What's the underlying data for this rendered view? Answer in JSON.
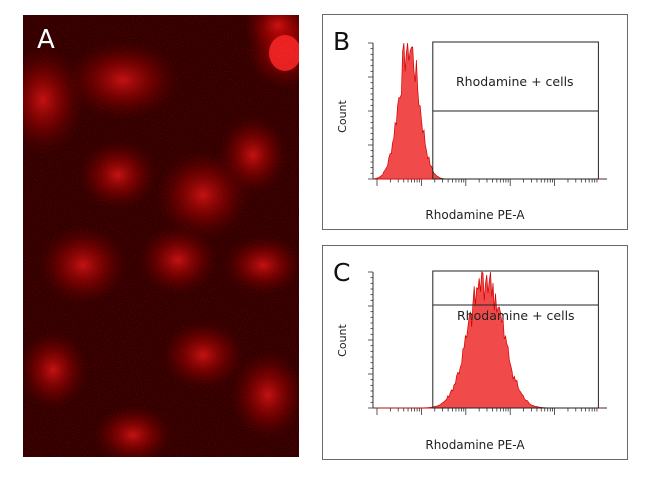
{
  "panels": {
    "a": {
      "letter": "A"
    },
    "b": {
      "letter": "B",
      "xlabel": "Rhodamine PE-A",
      "ylabel": "Count",
      "gate_label": "Rhodamine + cells"
    },
    "c": {
      "letter": "C",
      "xlabel": "Rhodamine PE-A",
      "ylabel": "Count",
      "gate_label": "Rhodamine + cells"
    }
  },
  "colors": {
    "histogram_fill": "#f04a4a",
    "histogram_stroke": "#d40000",
    "fluorescence": "#ff1a1a"
  },
  "chart_data": [
    {
      "type": "area",
      "panel": "B",
      "xlabel": "Rhodamine PE-A",
      "ylabel": "Count",
      "x_scale": "log",
      "gate": {
        "name": "Rhodamine + cells",
        "x_start_fraction": 0.26,
        "x_end_fraction": 0.98
      },
      "peak_x_fraction": 0.15,
      "peak_width_fraction": 0.045,
      "peak_height_fraction": 0.98
    },
    {
      "type": "area",
      "panel": "C",
      "xlabel": "Rhodamine PE-A",
      "ylabel": "Count",
      "x_scale": "log",
      "gate": {
        "name": "Rhodamine + cells",
        "x_start_fraction": 0.26,
        "x_end_fraction": 0.98
      },
      "peak_x_fraction": 0.49,
      "peak_width_fraction": 0.075,
      "peak_height_fraction": 0.96
    }
  ]
}
